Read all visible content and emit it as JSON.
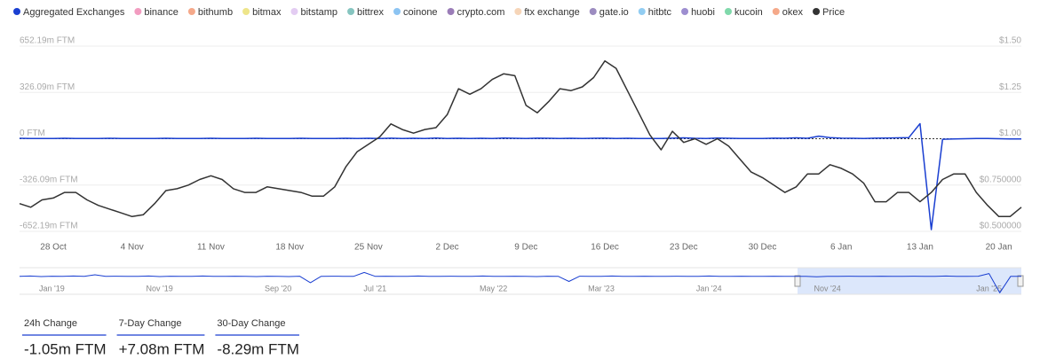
{
  "chart_data": [
    {
      "type": "line",
      "series": [
        {
          "name": "Aggregated Exchanges",
          "color": "#1a3fd1",
          "axis": "y",
          "values": [
            3,
            2,
            1,
            2,
            3,
            2,
            1,
            2,
            3,
            2,
            2,
            1,
            2,
            3,
            2,
            1,
            2,
            3,
            2,
            1,
            2,
            3,
            2,
            1,
            2,
            3,
            2,
            1,
            2,
            3,
            2,
            3,
            2,
            4,
            2,
            3,
            2,
            5,
            2,
            3,
            2,
            3,
            2,
            5,
            3,
            2,
            4,
            3,
            2,
            3,
            2,
            3,
            4,
            2,
            3,
            2,
            1,
            2,
            4,
            6,
            3,
            2,
            5,
            3,
            2,
            1,
            2,
            4,
            3,
            6,
            3,
            18,
            8,
            4,
            3,
            2,
            4,
            5,
            6,
            8,
            106,
            -640,
            -4,
            -2,
            0,
            1,
            1,
            0,
            -1,
            -2
          ]
        },
        {
          "name": "Price",
          "color": "#333333",
          "axis": "y2",
          "values": [
            0.65,
            0.63,
            0.67,
            0.68,
            0.71,
            0.71,
            0.67,
            0.64,
            0.62,
            0.6,
            0.58,
            0.59,
            0.65,
            0.72,
            0.73,
            0.75,
            0.78,
            0.8,
            0.78,
            0.73,
            0.71,
            0.71,
            0.74,
            0.73,
            0.72,
            0.71,
            0.69,
            0.69,
            0.74,
            0.85,
            0.93,
            0.97,
            1.01,
            1.08,
            1.05,
            1.03,
            1.05,
            1.06,
            1.13,
            1.27,
            1.24,
            1.27,
            1.32,
            1.35,
            1.34,
            1.18,
            1.14,
            1.2,
            1.27,
            1.26,
            1.28,
            1.33,
            1.42,
            1.38,
            1.26,
            1.14,
            1.02,
            0.94,
            1.04,
            0.98,
            1.0,
            0.97,
            1.0,
            0.96,
            0.89,
            0.82,
            0.79,
            0.75,
            0.71,
            0.74,
            0.81,
            0.81,
            0.86,
            0.84,
            0.81,
            0.76,
            0.66,
            0.66,
            0.71,
            0.71,
            0.66,
            0.71,
            0.78,
            0.81,
            0.81,
            0.71,
            0.64,
            0.58,
            0.58,
            0.63
          ]
        }
      ],
      "hidden_series": [
        {
          "name": "binance",
          "color": "#f29cc0"
        },
        {
          "name": "bithumb",
          "color": "#f5a98a"
        },
        {
          "name": "bitmax",
          "color": "#eee58a"
        },
        {
          "name": "bitstamp",
          "color": "#e3ccf2"
        },
        {
          "name": "bittrex",
          "color": "#86c5c0"
        },
        {
          "name": "coinone",
          "color": "#8cc4f2"
        },
        {
          "name": "crypto.com",
          "color": "#9b7db8"
        },
        {
          "name": "ftx exchange",
          "color": "#f6d5b8"
        },
        {
          "name": "gate.io",
          "color": "#9c8cc0"
        },
        {
          "name": "hitbtc",
          "color": "#92cdf2"
        },
        {
          "name": "huobi",
          "color": "#9d8ed0"
        },
        {
          "name": "kucoin",
          "color": "#80d9ab"
        },
        {
          "name": "okex",
          "color": "#f5a98a"
        }
      ],
      "categories": [
        null,
        null,
        null,
        "28 Oct",
        null,
        null,
        null,
        null,
        null,
        null,
        "4 Nov",
        null,
        null,
        null,
        null,
        null,
        null,
        "11 Nov",
        null,
        null,
        null,
        null,
        null,
        null,
        "18 Nov",
        null,
        null,
        null,
        null,
        null,
        null,
        "25 Nov",
        null,
        null,
        null,
        null,
        null,
        null,
        "2 Dec",
        null,
        null,
        null,
        null,
        null,
        null,
        "9 Dec",
        null,
        null,
        null,
        null,
        null,
        null,
        "16 Dec",
        null,
        null,
        null,
        null,
        null,
        null,
        "23 Dec",
        null,
        null,
        null,
        null,
        null,
        null,
        "30 Dec",
        null,
        null,
        null,
        null,
        null,
        null,
        "6 Jan",
        null,
        null,
        null,
        null,
        null,
        null,
        "13 Jan",
        null,
        null,
        null,
        null,
        null,
        null,
        "20 Jan",
        null,
        null
      ],
      "ylim": [
        -652.19,
        652.19
      ],
      "yticks": [
        {
          "value": 652.19,
          "label": "652.19m FTM"
        },
        {
          "value": 326.09,
          "label": "326.09m FTM"
        },
        {
          "value": 0,
          "label": "0 FTM"
        },
        {
          "value": -326.09,
          "label": "-326.09m FTM"
        },
        {
          "value": -652.19,
          "label": "-652.19m FTM"
        }
      ],
      "y2lim": [
        0.5,
        1.5
      ],
      "y2ticks": [
        {
          "value": 1.5,
          "label": "$1.50"
        },
        {
          "value": 1.25,
          "label": "$1.25"
        },
        {
          "value": 1.0,
          "label": "$1.00"
        },
        {
          "value": 0.75,
          "label": "$0.750000"
        },
        {
          "value": 0.5,
          "label": "$0.500000"
        }
      ],
      "grid": true
    },
    {
      "type": "line",
      "series": [
        {
          "color": "#1a3fd1",
          "values": [
            0,
            10,
            -10,
            5,
            0,
            10,
            -5,
            60,
            0,
            5,
            -5,
            0,
            10,
            -10,
            5,
            0,
            -5,
            10,
            0,
            -5,
            5,
            0,
            -10,
            5,
            0,
            -10,
            5,
            -250,
            0,
            5,
            0,
            -5,
            150,
            0,
            5,
            -5,
            0,
            10,
            -5,
            0,
            5,
            0,
            -5,
            10,
            0,
            -5,
            5,
            0,
            -10,
            5,
            0,
            -200,
            5,
            0,
            -5,
            10,
            0,
            -5,
            5,
            0,
            -5,
            5,
            0,
            -5,
            10,
            0,
            -5,
            5,
            0,
            -5,
            5,
            0,
            -5,
            0,
            -20,
            -5,
            0,
            5,
            0,
            -5,
            5,
            0,
            0,
            5,
            0,
            -5,
            10,
            -5,
            0,
            5,
            106,
            -640,
            -5,
            0
          ]
        }
      ],
      "categories": [
        null,
        null,
        null,
        "Jan '19",
        null,
        null,
        null,
        null,
        null,
        null,
        null,
        null,
        null,
        "Nov '19",
        null,
        null,
        null,
        null,
        null,
        null,
        null,
        null,
        null,
        null,
        "Sep '20",
        null,
        null,
        null,
        null,
        null,
        null,
        null,
        null,
        "Jul '21",
        null,
        null,
        null,
        null,
        null,
        null,
        null,
        null,
        null,
        null,
        "May '22",
        null,
        null,
        null,
        null,
        null,
        null,
        null,
        null,
        null,
        "Mar '23",
        null,
        null,
        null,
        null,
        null,
        null,
        null,
        null,
        null,
        "Jan '24",
        null,
        null,
        null,
        null,
        null,
        null,
        null,
        null,
        null,
        null,
        "Nov '24",
        null,
        null,
        null,
        null,
        null,
        null,
        null,
        null,
        null,
        null,
        null,
        null,
        null,
        null,
        "Jan '25",
        null,
        null,
        null
      ],
      "ylim": [
        -700,
        300
      ]
    }
  ],
  "stats": [
    {
      "label": "24h Change",
      "value": "-1.05m FTM"
    },
    {
      "label": "7-Day Change",
      "value": "+7.08m FTM"
    },
    {
      "label": "30-Day Change",
      "value": "-8.29m FTM"
    }
  ]
}
